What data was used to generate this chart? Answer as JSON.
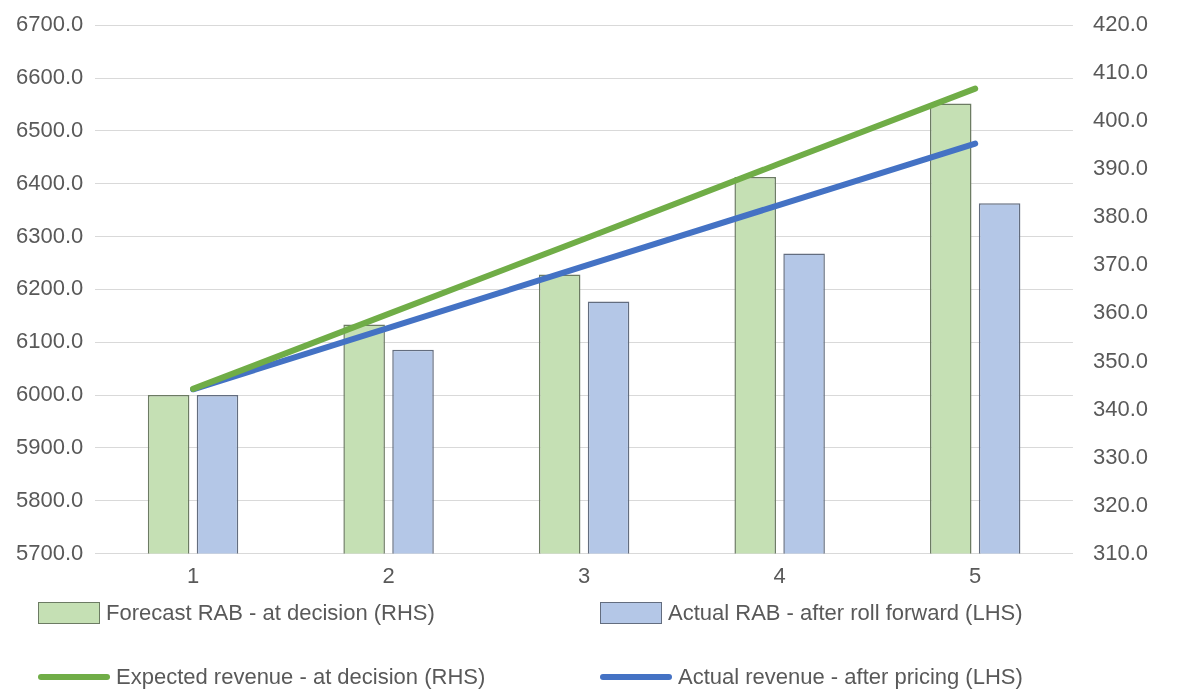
{
  "chart_data": {
    "type": "bar",
    "categories": [
      "1",
      "2",
      "3",
      "4",
      "5"
    ],
    "series": [
      {
        "name": "Forecast RAB - at decision (RHS)",
        "axis": "y2",
        "color": "#c5e0b4",
        "values": [
          343.0,
          357.7,
          368.1,
          388.4,
          403.7
        ]
      },
      {
        "name": "Actual RAB - after roll forward (LHS)",
        "axis": "y",
        "color": "#b4c7e7",
        "values": [
          6000,
          6086,
          6177,
          6268,
          6363
        ]
      },
      {
        "name": "Expected revenue - at decision (RHS)",
        "type": "line",
        "axis": "y2",
        "color": "#70ad47",
        "values": [
          344.3,
          359.9,
          375.5,
          391.2,
          406.8
        ]
      },
      {
        "name": "Actual revenue - after pricing (LHS)",
        "type": "line",
        "axis": "y",
        "color": "#4472c4",
        "values": [
          6011,
          6127,
          6244,
          6360,
          6476
        ]
      }
    ],
    "ylim": [
      5700,
      6700
    ],
    "yticks": [
      {
        "value": 5700,
        "label": "5700.0"
      },
      {
        "value": 5800,
        "label": "5800.0"
      },
      {
        "value": 5900,
        "label": "5900.0"
      },
      {
        "value": 6000,
        "label": "6000.0"
      },
      {
        "value": 6100,
        "label": "6100.0"
      },
      {
        "value": 6200,
        "label": "6200.0"
      },
      {
        "value": 6300,
        "label": "6300.0"
      },
      {
        "value": 6400,
        "label": "6400.0"
      },
      {
        "value": 6500,
        "label": "6500.0"
      },
      {
        "value": 6600,
        "label": "6600.0"
      },
      {
        "value": 6700,
        "label": "6700.0"
      }
    ],
    "y2lim": [
      310,
      420
    ],
    "y2ticks": [
      {
        "value": 310,
        "label": "310.0"
      },
      {
        "value": 320,
        "label": "320.0"
      },
      {
        "value": 330,
        "label": "330.0"
      },
      {
        "value": 340,
        "label": "340.0"
      },
      {
        "value": 350,
        "label": "350.0"
      },
      {
        "value": 360,
        "label": "360.0"
      },
      {
        "value": 370,
        "label": "370.0"
      },
      {
        "value": 380,
        "label": "380.0"
      },
      {
        "value": 390,
        "label": "390.0"
      },
      {
        "value": 400,
        "label": "400.0"
      },
      {
        "value": 410,
        "label": "410.0"
      },
      {
        "value": 420,
        "label": "420.0"
      }
    ],
    "grid": "y",
    "legend": "bottom",
    "marker": "none"
  }
}
